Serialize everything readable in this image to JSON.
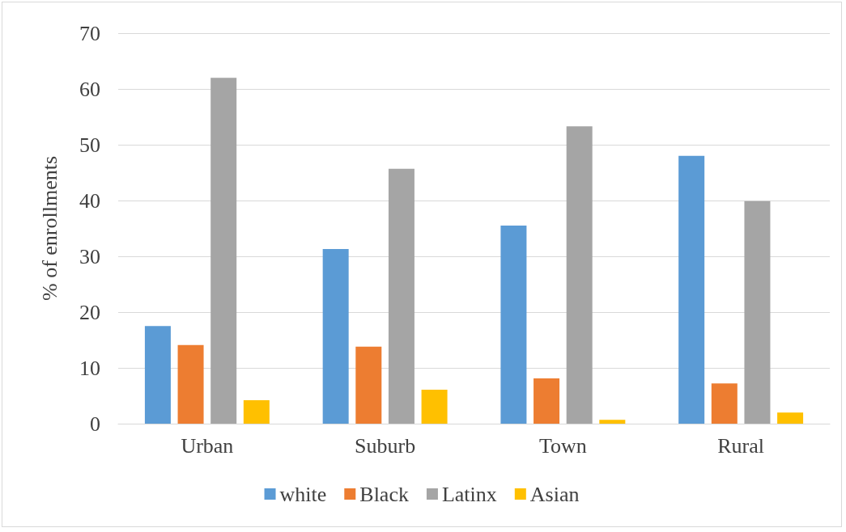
{
  "chart_data": {
    "type": "bar",
    "ylabel": "% of enrollments",
    "categories": [
      "Urban",
      "Suburb",
      "Town",
      "Rural"
    ],
    "series": [
      {
        "name": "white",
        "color": "#5b9bd5",
        "values": [
          17.5,
          31.3,
          35.5,
          48.0
        ]
      },
      {
        "name": "Black",
        "color": "#ed7d31",
        "values": [
          14.1,
          13.8,
          8.1,
          7.2
        ]
      },
      {
        "name": "Latinx",
        "color": "#a5a5a5",
        "values": [
          62.0,
          45.7,
          53.3,
          39.9
        ]
      },
      {
        "name": "Asian",
        "color": "#ffc000",
        "values": [
          4.2,
          6.1,
          0.7,
          2.0
        ]
      }
    ],
    "ylim": [
      0,
      70
    ],
    "yticks": [
      0,
      10,
      20,
      30,
      40,
      50,
      60,
      70
    ],
    "grid": "y",
    "legend": "bottom"
  }
}
